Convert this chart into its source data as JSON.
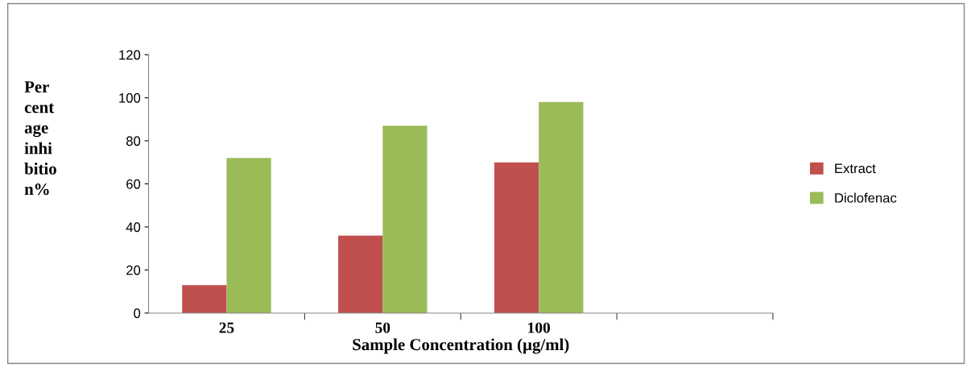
{
  "chart_data": {
    "type": "bar",
    "xlabel": "Sample Concentration (µg/ml)",
    "ylabel": "Per\ncent\nage\ninhi\nbitio\nn%",
    "categories": [
      "25",
      "50",
      "100",
      null
    ],
    "series": [
      {
        "name": "Extract",
        "color": "#c0504d",
        "values": [
          13,
          36,
          70,
          null
        ]
      },
      {
        "name": "Diclofenac",
        "color": "#9bbb59",
        "values": [
          72,
          87,
          98,
          null
        ]
      }
    ],
    "ylim": [
      0,
      120
    ],
    "yticks": [
      0,
      20,
      40,
      60,
      80,
      100,
      120
    ],
    "grid": false,
    "legend": "right"
  }
}
